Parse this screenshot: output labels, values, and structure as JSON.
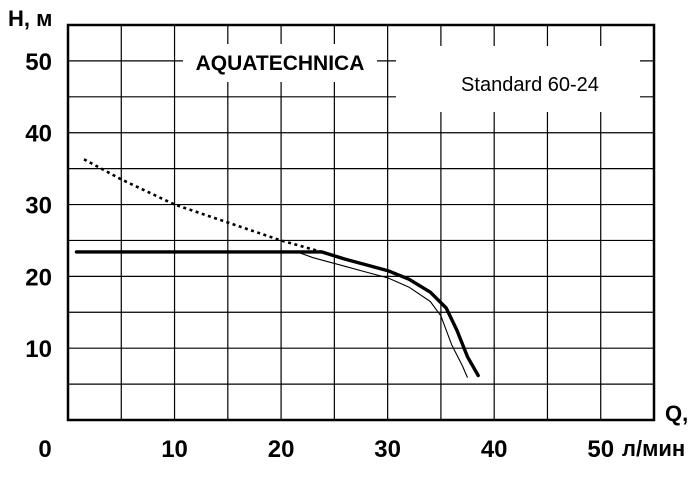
{
  "chart_data": {
    "type": "line",
    "title": "AQUATECHNICA",
    "subtitle": "Standard 60-24",
    "xlabel": "Q,",
    "xunit": "л/мин",
    "ylabel": "Н, м",
    "xlim": [
      0,
      55
    ],
    "ylim": [
      0,
      55
    ],
    "x_ticks": [
      0,
      10,
      20,
      30,
      40,
      50
    ],
    "y_ticks": [
      10,
      20,
      30,
      40,
      50
    ],
    "grid": true,
    "series": [
      {
        "style": "dotted",
        "points": [
          [
            1.5,
            36.3
          ],
          [
            5,
            33.5
          ],
          [
            10,
            30.0
          ],
          [
            15,
            27.5
          ],
          [
            20,
            25.0
          ],
          [
            23.8,
            23.4
          ]
        ]
      },
      {
        "style": "thick",
        "points": [
          [
            0.8,
            23.4
          ],
          [
            23.8,
            23.4
          ],
          [
            26,
            22.4
          ],
          [
            28,
            21.6
          ],
          [
            30,
            20.8
          ],
          [
            32,
            19.6
          ],
          [
            34,
            17.8
          ],
          [
            35.5,
            15.6
          ],
          [
            36.5,
            12.5
          ],
          [
            37.5,
            8.8
          ],
          [
            38.5,
            6.2
          ]
        ]
      },
      {
        "style": "thin",
        "points": [
          [
            21.5,
            23.4
          ],
          [
            23,
            22.6
          ],
          [
            26,
            21.4
          ],
          [
            28,
            20.6
          ],
          [
            30,
            19.8
          ],
          [
            32,
            18.5
          ],
          [
            34,
            16.5
          ],
          [
            35,
            14.5
          ],
          [
            36,
            10.5
          ],
          [
            37,
            7.6
          ],
          [
            37.5,
            5.9
          ]
        ]
      }
    ]
  }
}
